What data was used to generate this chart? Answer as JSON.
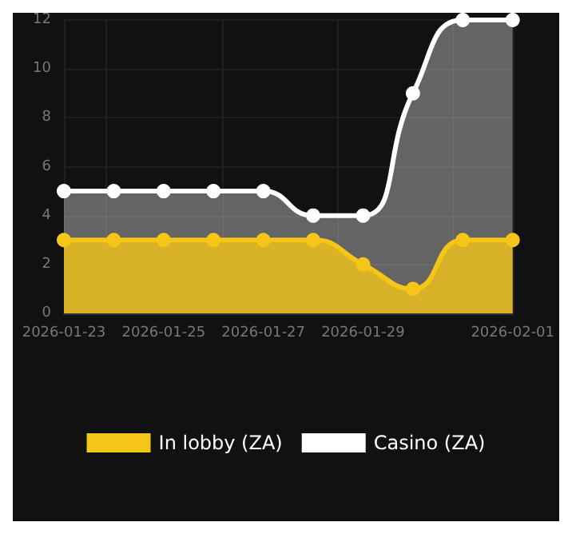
{
  "chart_data": {
    "type": "area",
    "x": [
      "2026-01-23",
      "2026-01-24",
      "2026-01-25",
      "2026-01-26",
      "2026-01-27",
      "2026-01-28",
      "2026-01-29",
      "2026-01-30",
      "2026-01-31",
      "2026-02-01"
    ],
    "series": [
      {
        "name": "In lobby (ZA)",
        "color": "#f5c518",
        "values": [
          3,
          3,
          3,
          3,
          3,
          3,
          2,
          1,
          3,
          3
        ]
      },
      {
        "name": "Casino (ZA)",
        "color": "#ffffff",
        "values": [
          5,
          5,
          5,
          5,
          5,
          4,
          4,
          9,
          12,
          12
        ]
      }
    ],
    "xlim": [
      "2026-01-23",
      "2026-02-01"
    ],
    "xticks": [
      "2026-01-23",
      "2026-01-25",
      "2026-01-27",
      "2026-01-29",
      "2026-02-01"
    ],
    "ylim": [
      0,
      12
    ],
    "yticks": [
      0,
      2,
      4,
      6,
      8,
      10,
      12
    ],
    "grid": true,
    "legend": "bottom",
    "marker": "circle",
    "line_style": "solid"
  }
}
